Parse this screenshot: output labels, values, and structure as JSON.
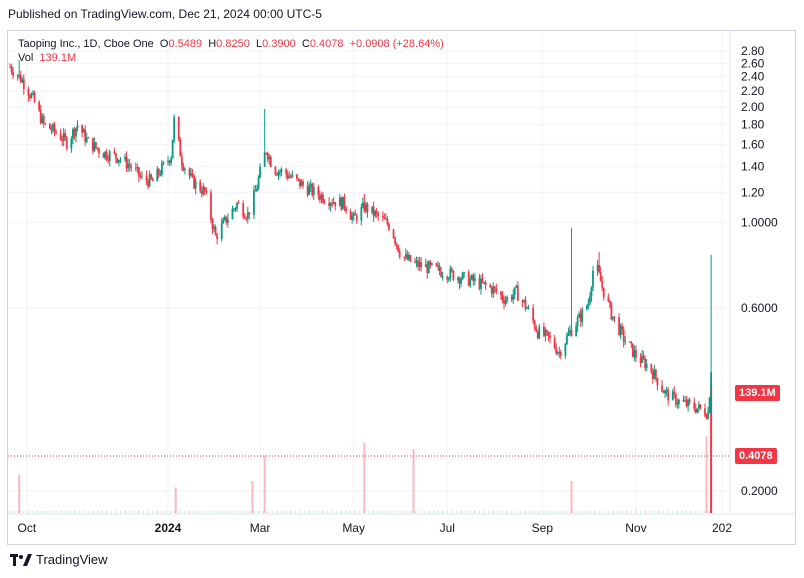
{
  "header": {
    "published": "Published on TradingView.com, Dec 21, 2024 00:00 UTC-5"
  },
  "legend": {
    "symbol": "Taoping Inc., 1D, Cboe One",
    "o_label": "O",
    "o_value": "0.5489",
    "h_label": "H",
    "h_value": "0.8250",
    "l_label": "L",
    "l_value": "0.3900",
    "c_label": "C",
    "c_value": "0.4078",
    "change": "+0.0908 (+28.64%)",
    "vol_label": "Vol",
    "vol_value": "139.1M"
  },
  "badges": {
    "volume": "139.1M",
    "price": "0.4078"
  },
  "footer": {
    "brand": "TradingView"
  },
  "colors": {
    "up": "#089981",
    "down": "#f23645",
    "grid": "#f0f3fa",
    "axis_text": "#131722"
  },
  "chart_data": {
    "type": "candlestick",
    "title": "Taoping Inc., 1D, Cboe One",
    "y_scale": "log",
    "ylim": [
      0.17,
      2.95
    ],
    "y_ticks": [
      "2.80",
      "2.60",
      "2.40",
      "2.20",
      "2.00",
      "1.80",
      "1.60",
      "1.40",
      "1.20",
      "1.0000",
      "0.6000",
      "0.2000"
    ],
    "x_ticks": [
      "Oct",
      "2024",
      "Mar",
      "May",
      "Jul",
      "Sep",
      "Nov",
      "202"
    ],
    "x_range": [
      "2023-09-20",
      "2024-12-31"
    ],
    "last_close": 0.4078,
    "last_volume_label": "139.1M",
    "price_path": [
      [
        "2023-09-20",
        2.55
      ],
      [
        "2023-09-28",
        2.35
      ],
      [
        "2023-10-05",
        2.1
      ],
      [
        "2023-10-12",
        1.8
      ],
      [
        "2023-10-20",
        1.72
      ],
      [
        "2023-10-27",
        1.62
      ],
      [
        "2023-11-03",
        1.8
      ],
      [
        "2023-11-10",
        1.62
      ],
      [
        "2023-11-20",
        1.52
      ],
      [
        "2023-11-30",
        1.48
      ],
      [
        "2023-12-08",
        1.4
      ],
      [
        "2023-12-15",
        1.3
      ],
      [
        "2023-12-22",
        1.28
      ],
      [
        "2023-12-29",
        1.4
      ],
      [
        "2024-01-03",
        1.5
      ],
      [
        "2024-01-05",
        1.85
      ],
      [
        "2024-01-10",
        1.45
      ],
      [
        "2024-01-17",
        1.28
      ],
      [
        "2024-01-25",
        1.2
      ],
      [
        "2024-02-01",
        0.92
      ],
      [
        "2024-02-08",
        1.02
      ],
      [
        "2024-02-15",
        1.12
      ],
      [
        "2024-02-22",
        1.05
      ],
      [
        "2024-02-27",
        1.2
      ],
      [
        "2024-03-01",
        1.35
      ],
      [
        "2024-03-05",
        1.55
      ],
      [
        "2024-03-10",
        1.38
      ],
      [
        "2024-03-17",
        1.35
      ],
      [
        "2024-03-25",
        1.28
      ],
      [
        "2024-04-05",
        1.2
      ],
      [
        "2024-04-15",
        1.15
      ],
      [
        "2024-04-25",
        1.12
      ],
      [
        "2024-05-01",
        1.02
      ],
      [
        "2024-05-08",
        1.1
      ],
      [
        "2024-05-15",
        1.05
      ],
      [
        "2024-05-25",
        0.98
      ],
      [
        "2024-06-01",
        0.82
      ],
      [
        "2024-06-10",
        0.78
      ],
      [
        "2024-06-20",
        0.76
      ],
      [
        "2024-07-01",
        0.74
      ],
      [
        "2024-07-10",
        0.72
      ],
      [
        "2024-07-20",
        0.7
      ],
      [
        "2024-07-31",
        0.67
      ],
      [
        "2024-08-08",
        0.63
      ],
      [
        "2024-08-15",
        0.66
      ],
      [
        "2024-08-22",
        0.6
      ],
      [
        "2024-08-29",
        0.52
      ],
      [
        "2024-09-05",
        0.5
      ],
      [
        "2024-09-12",
        0.46
      ],
      [
        "2024-09-19",
        0.52
      ],
      [
        "2024-09-26",
        0.57
      ],
      [
        "2024-10-01",
        0.62
      ],
      [
        "2024-10-05",
        0.8
      ],
      [
        "2024-10-10",
        0.68
      ],
      [
        "2024-10-16",
        0.58
      ],
      [
        "2024-10-24",
        0.5
      ],
      [
        "2024-11-01",
        0.45
      ],
      [
        "2024-11-10",
        0.42
      ],
      [
        "2024-11-20",
        0.36
      ],
      [
        "2024-11-30",
        0.34
      ],
      [
        "2024-12-10",
        0.33
      ],
      [
        "2024-12-18",
        0.32
      ],
      [
        "2024-12-20",
        0.4078
      ]
    ],
    "spikes": [
      [
        "2023-09-26",
        2.65
      ],
      [
        "2023-10-15",
        2.2
      ],
      [
        "2024-01-06",
        2.0
      ],
      [
        "2024-02-25",
        1.75
      ],
      [
        "2024-03-04",
        1.98
      ],
      [
        "2024-05-08",
        1.19
      ],
      [
        "2024-06-09",
        0.85
      ],
      [
        "2024-09-20",
        0.97
      ],
      [
        "2024-10-08",
        0.84
      ],
      [
        "2024-12-20",
        0.825
      ]
    ],
    "volume_spikes": [
      [
        "2023-09-26",
        0.3
      ],
      [
        "2024-01-06",
        0.2
      ],
      [
        "2024-02-25",
        0.25
      ],
      [
        "2024-03-04",
        0.45
      ],
      [
        "2024-05-08",
        0.55
      ],
      [
        "2024-06-09",
        0.5
      ],
      [
        "2024-09-20",
        0.25
      ],
      [
        "2024-12-17",
        0.6
      ],
      [
        "2024-12-20",
        1.0
      ]
    ]
  }
}
